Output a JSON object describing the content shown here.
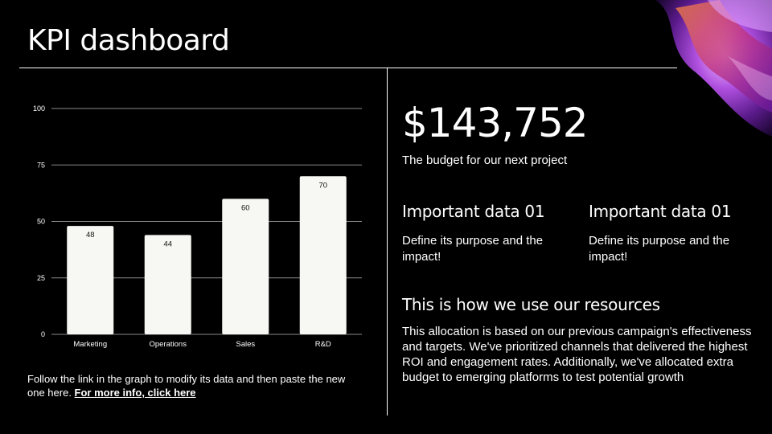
{
  "slide": {
    "title": "KPI dashboard"
  },
  "chart_data": {
    "type": "bar",
    "categories": [
      "Marketing",
      "Operations",
      "Sales",
      "R&D"
    ],
    "values": [
      48,
      44,
      60,
      70
    ],
    "ylim": [
      0,
      100
    ],
    "yticks": [
      0,
      25,
      50,
      75,
      100
    ],
    "grid": true,
    "legend": "none",
    "bar_color": "#f7f7f3",
    "title": "",
    "xlabel": "",
    "ylabel": ""
  },
  "footnote": {
    "text": "Follow the link in the graph to modify its data and then paste the new one here. ",
    "link_label": "For more info, click here"
  },
  "kpi": {
    "value": "$143,752",
    "caption": "The budget for our next project"
  },
  "data_blocks": [
    {
      "title": "Important data 01",
      "body": "Define its purpose and the impact!"
    },
    {
      "title": "Important data 01",
      "body": "Define its purpose and the impact!"
    }
  ],
  "resources": {
    "title": "This is how we use our resources",
    "body": "This allocation is based on our previous campaign's effectiveness and targets. We've prioritized channels that delivered the highest ROI and engagement rates. Additionally, we've allocated extra budget to emerging platforms to test potential growth"
  }
}
